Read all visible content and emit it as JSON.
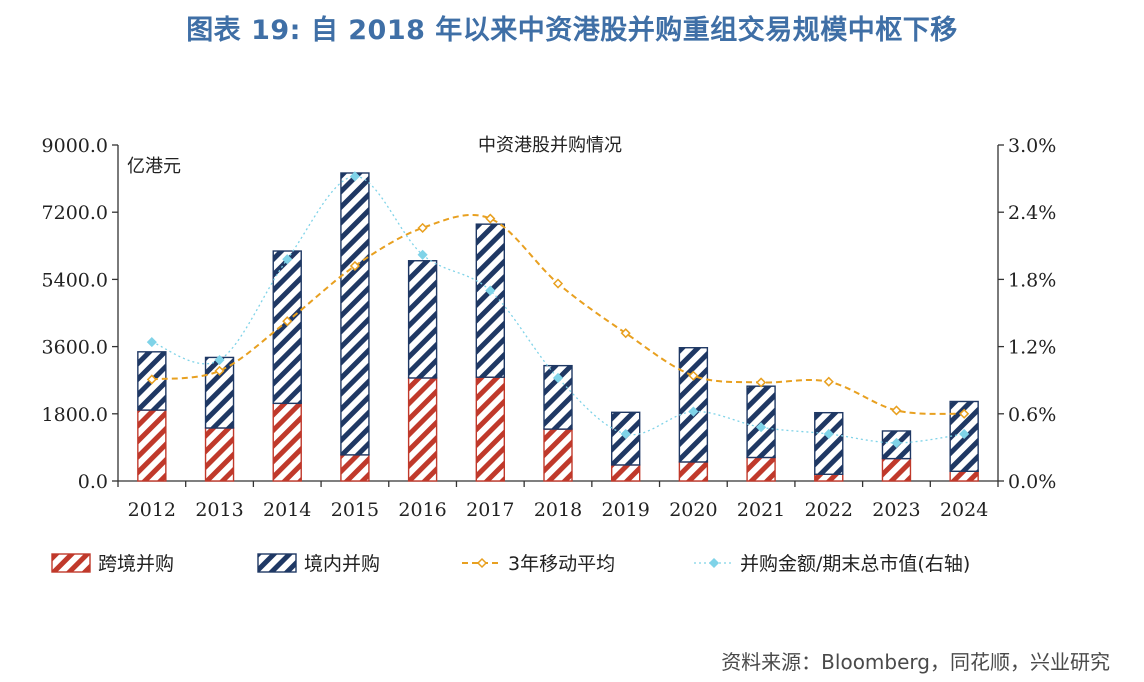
{
  "header": {
    "title": "图表 19: 自 2018 年以来中资港股并购重组交易规模中枢下移"
  },
  "chart_data": {
    "type": "bar",
    "title": "中资港股并购情况",
    "ylabel": "亿港元",
    "categories": [
      "2012",
      "2013",
      "2014",
      "2015",
      "2016",
      "2017",
      "2018",
      "2019",
      "2020",
      "2021",
      "2022",
      "2023",
      "2024"
    ],
    "ylim": [
      0,
      9000
    ],
    "y_ticks": [
      "0.0",
      "1800.0",
      "3600.0",
      "5400.0",
      "7200.0",
      "9000.0"
    ],
    "y2lim": [
      0,
      0.03
    ],
    "y2_ticks": [
      "0.0%",
      "0.6%",
      "1.2%",
      "1.8%",
      "2.4%",
      "3.0%"
    ],
    "legend_position": "bottom",
    "series": [
      {
        "name": "跨境并购",
        "kind": "bar",
        "stack": "total",
        "axis": "left",
        "color": "#c0392b",
        "pattern": "hatch",
        "values": [
          1900,
          1420,
          2080,
          700,
          2760,
          2780,
          1390,
          430,
          510,
          630,
          180,
          600,
          260
        ]
      },
      {
        "name": "境内并购",
        "kind": "bar",
        "stack": "total",
        "axis": "left",
        "color": "#1f3864",
        "pattern": "hatch",
        "values": [
          1560,
          1890,
          4080,
          7550,
          3140,
          4100,
          1700,
          1410,
          3060,
          1910,
          1650,
          740,
          1870
        ]
      },
      {
        "name": "3年移动平均",
        "kind": "line",
        "axis": "left",
        "color": "#e8a020",
        "style": "dashed",
        "marker": "diamond",
        "values": [
          2720,
          2950,
          4280,
          5760,
          6780,
          7030,
          5290,
          3960,
          2820,
          2640,
          2660,
          1890,
          1800
        ]
      },
      {
        "name": "并购金额/期末总市值(右轴)",
        "kind": "line",
        "axis": "right",
        "color": "#7fd3e8",
        "style": "dotted",
        "marker": "diamond",
        "values": [
          0.0124,
          0.0108,
          0.0198,
          0.0272,
          0.0202,
          0.017,
          0.0092,
          0.0042,
          0.0062,
          0.0048,
          0.0042,
          0.0034,
          0.0042
        ]
      }
    ]
  },
  "footer": {
    "source": "资料来源：Bloomberg，同花顺，兴业研究"
  }
}
